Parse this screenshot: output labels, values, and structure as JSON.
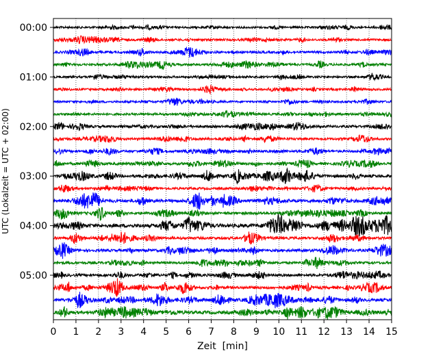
{
  "chart_data": {
    "type": "line",
    "subtype": "helicorder-seismogram",
    "title": "",
    "xlabel": "Zeit  [min]",
    "ylabel": "UTC (Lokalzeit = UTC + 02:00)",
    "xlim": [
      0,
      15
    ],
    "x_ticks": [
      "0",
      "1",
      "2",
      "3",
      "4",
      "5",
      "6",
      "7",
      "8",
      "9",
      "10",
      "11",
      "12",
      "13",
      "14",
      "15"
    ],
    "y_tick_labels": [
      "00:00",
      "01:00",
      "02:00",
      "03:00",
      "04:00",
      "05:00"
    ],
    "y_tick_rows": [
      0,
      4,
      8,
      12,
      16,
      20
    ],
    "vertical_grid": true,
    "grid_style": "dotted",
    "trace_colors": [
      "#000000",
      "#ff0000",
      "#0000ff",
      "#008000"
    ],
    "trace_minutes": 15,
    "num_traces": 24,
    "activity": [
      0.28,
      0.35,
      0.42,
      0.4,
      0.3,
      0.32,
      0.3,
      0.35,
      0.48,
      0.4,
      0.45,
      0.5,
      0.7,
      0.38,
      0.75,
      0.55,
      0.95,
      0.55,
      0.55,
      0.45,
      0.5,
      0.65,
      0.75,
      0.8
    ]
  }
}
